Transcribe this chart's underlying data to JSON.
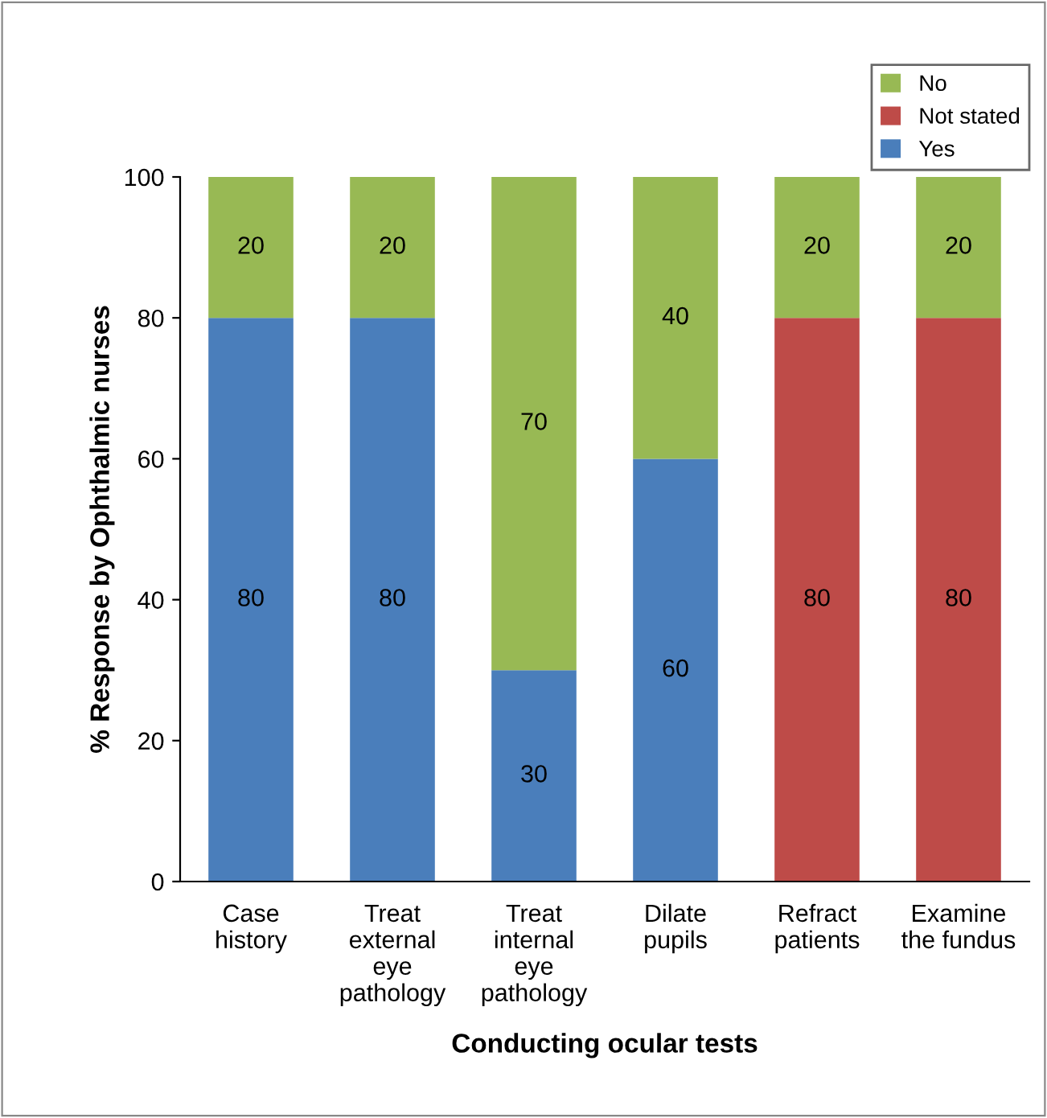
{
  "chart_data": {
    "type": "bar",
    "stacked": true,
    "xlabel": "Conducting ocular tests",
    "ylabel": "% Response by Ophthalmic nurses",
    "categories": [
      "Case\nhistory",
      "Treat\nexternal\neye\npathology",
      "Treat\ninternal\neye\npathology",
      "Dilate\npupils",
      "Refract\npatients",
      "Examine\nthe fundus"
    ],
    "series": [
      {
        "name": "Yes",
        "color": "#4a7ebb",
        "values": [
          80,
          80,
          30,
          60,
          0,
          0
        ],
        "value_labels": [
          "80",
          "80",
          "30",
          "60",
          null,
          null
        ]
      },
      {
        "name": "Not stated",
        "color": "#be4b48",
        "values": [
          0,
          0,
          0,
          0,
          80,
          80
        ],
        "value_labels": [
          null,
          null,
          null,
          null,
          "80",
          "80"
        ]
      },
      {
        "name": "No",
        "color": "#98b954",
        "values": [
          20,
          20,
          70,
          40,
          20,
          20
        ],
        "value_labels": [
          "20",
          "20",
          "70",
          "40",
          "20",
          "20"
        ]
      }
    ],
    "ylim": [
      0,
      100
    ],
    "yticks": [
      0,
      20,
      40,
      60,
      80,
      100
    ],
    "grid": false,
    "legend": "top right"
  }
}
